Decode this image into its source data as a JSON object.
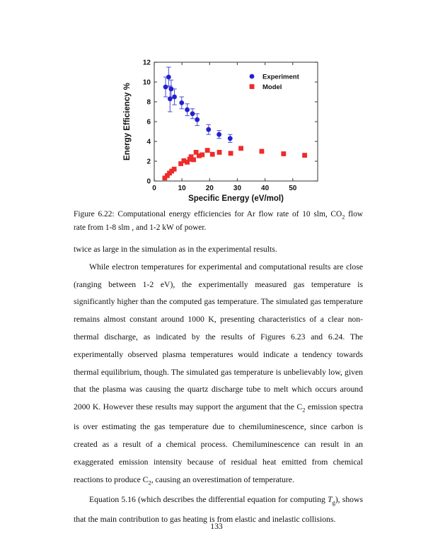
{
  "page": {
    "number": "133"
  },
  "figure": {
    "caption_line1": "Figure 6.22: Computational energy efficiencies for Ar flow rate of 10 slm, CO~2~ flow",
    "caption_line2": "rate from 1-8 slm , and 1-2 kW of power."
  },
  "body": {
    "paragraphs": [
      {
        "indent": false,
        "text": "twice as large in the simulation as in the experimental results."
      },
      {
        "indent": true,
        "text": "While electron temperatures for experimental and computational results are close (ranging between 1-2 eV), the experimentally measured gas temperature is significantly higher than the computed gas temperature. The simulated gas temperature remains almost constant around 1000 K, presenting characteristics of a clear non-thermal discharge, as indicated by the results of Figures 6.23 and 6.24. The experimentally observed plasma temperatures would indicate a tendency towards thermal equilibrium, though. The simulated gas temperature is unbelievably low, given that the plasma was causing the quartz discharge tube to melt which occurs around 2000 K. However these results may support the argument that the C~2~ emission spectra is over estimating the gas temperature due to chemiluminescence, since carbon is created as a result of a chemical process. Chemiluminescence can result in an exaggerated emission intensity because of residual heat emitted from chemical reactions to produce C~2~, causing an overestimation of temperature."
      },
      {
        "indent": true,
        "text": "Equation 5.16 (which describes the differential equation for computing *T*~g~), shows that the main contribution to gas heating is from elastic and inelastic collisions."
      }
    ]
  },
  "chart_data": {
    "type": "scatter",
    "title": "",
    "xlabel": "Specific Energy (eV/mol)",
    "ylabel": "Energy Efficiency %",
    "xlim": [
      0,
      59
    ],
    "ylim": [
      0,
      12
    ],
    "xticks": [
      0,
      10,
      20,
      30,
      40,
      50
    ],
    "yticks": [
      0,
      2,
      4,
      6,
      8,
      10,
      12
    ],
    "grid": false,
    "legend_position": "top-right",
    "frame_color": "#555555",
    "series": [
      {
        "name": "Experiment",
        "marker": "circle",
        "color": "#2121cd",
        "error_color": "#5a5ad8",
        "points": [
          {
            "x": 4.1,
            "y": 9.5,
            "err": 1.0
          },
          {
            "x": 5.2,
            "y": 10.5,
            "err": 1.0
          },
          {
            "x": 5.7,
            "y": 8.3,
            "err": 1.3
          },
          {
            "x": 6.1,
            "y": 9.3,
            "err": 0.9
          },
          {
            "x": 7.3,
            "y": 8.5,
            "err": 0.8
          },
          {
            "x": 9.9,
            "y": 7.9,
            "err": 0.6
          },
          {
            "x": 11.9,
            "y": 7.2,
            "err": 0.6
          },
          {
            "x": 13.8,
            "y": 6.8,
            "err": 0.5
          },
          {
            "x": 15.5,
            "y": 6.2,
            "err": 0.6
          },
          {
            "x": 19.6,
            "y": 5.2,
            "err": 0.5
          },
          {
            "x": 23.4,
            "y": 4.7,
            "err": 0.4
          },
          {
            "x": 27.4,
            "y": 4.3,
            "err": 0.4
          }
        ]
      },
      {
        "name": "Model",
        "marker": "square",
        "color": "#ee2b2b",
        "points": [
          {
            "x": 3.8,
            "y": 0.3
          },
          {
            "x": 4.7,
            "y": 0.55
          },
          {
            "x": 5.5,
            "y": 0.8
          },
          {
            "x": 6.3,
            "y": 1.0
          },
          {
            "x": 7.2,
            "y": 1.2
          },
          {
            "x": 9.6,
            "y": 1.75
          },
          {
            "x": 10.7,
            "y": 2.05
          },
          {
            "x": 11.9,
            "y": 1.9
          },
          {
            "x": 12.8,
            "y": 2.2
          },
          {
            "x": 13.3,
            "y": 2.45
          },
          {
            "x": 14.2,
            "y": 2.15
          },
          {
            "x": 15.1,
            "y": 2.9
          },
          {
            "x": 16.2,
            "y": 2.55
          },
          {
            "x": 17.3,
            "y": 2.65
          },
          {
            "x": 19.2,
            "y": 3.1
          },
          {
            "x": 21.0,
            "y": 2.7
          },
          {
            "x": 23.5,
            "y": 2.9
          },
          {
            "x": 27.6,
            "y": 2.8
          },
          {
            "x": 31.3,
            "y": 3.3
          },
          {
            "x": 38.8,
            "y": 3.0
          },
          {
            "x": 46.7,
            "y": 2.75
          },
          {
            "x": 54.3,
            "y": 2.6
          }
        ]
      }
    ]
  }
}
